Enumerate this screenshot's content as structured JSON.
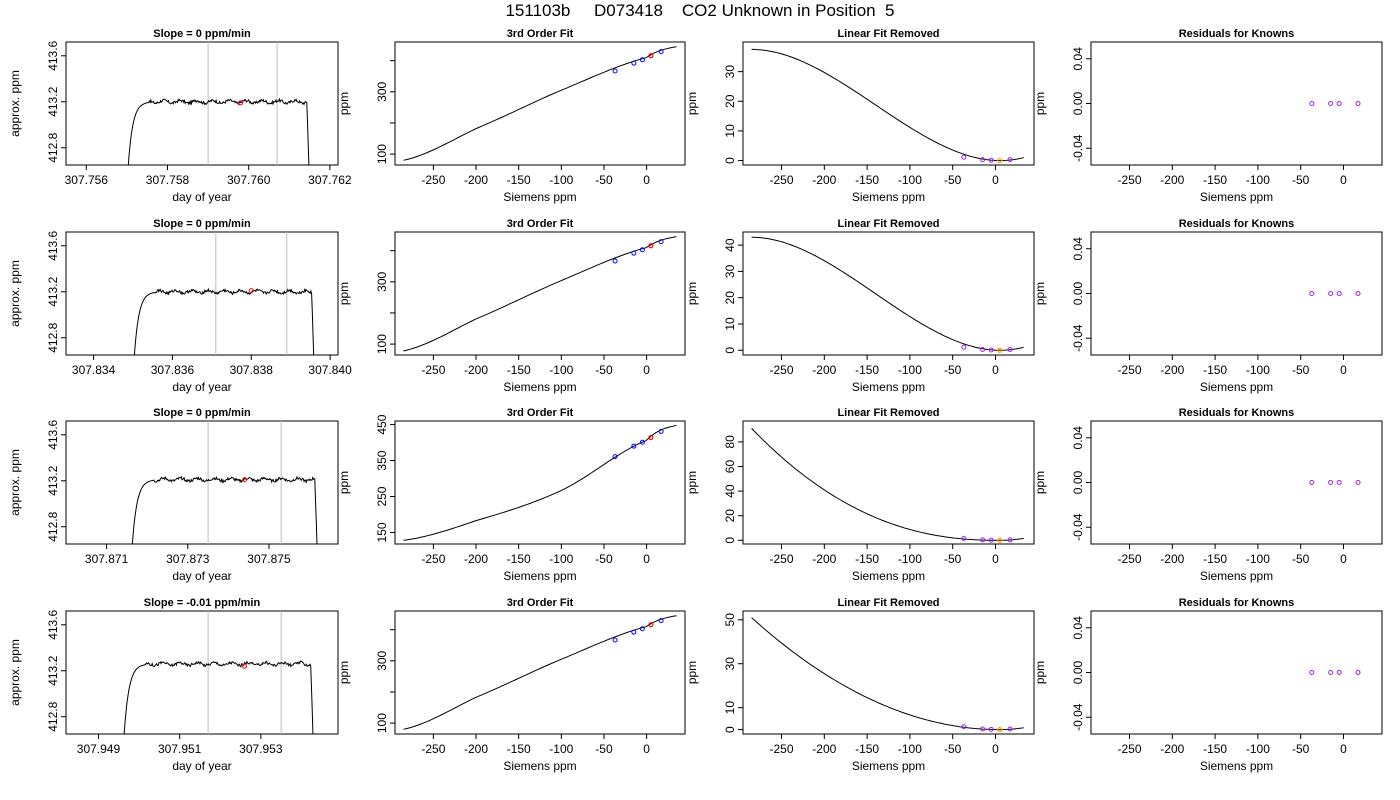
{
  "title": "151103b     D073418    CO2 Unknown in Position  5",
  "colors": {
    "line": "#000000",
    "vline": "#bebebe",
    "red": "#ff0000",
    "blue": "#0000ff",
    "orange": "#ffa500",
    "purple": "#a020f0"
  },
  "chart_data": [
    {
      "type": "line",
      "title": "Slope =  0  ppm/min",
      "xlabel": "day of year",
      "ylabel": "approx. ppm",
      "xlim": [
        307.7555,
        307.7622
      ],
      "ylim": [
        412.65,
        413.72
      ],
      "xticks": [
        307.756,
        307.758,
        307.76,
        307.762
      ],
      "xtick_labels": [
        "307.756",
        "307.758",
        "307.760",
        "307.762"
      ],
      "yticks": [
        412.8,
        413.2,
        413.6
      ],
      "ytick_labels": [
        "412.8",
        "413.2",
        "413.6"
      ],
      "window_lines": [
        307.759,
        307.7607
      ],
      "marker": {
        "x": 307.7598,
        "y": 413.19,
        "color": "red"
      },
      "trace": {
        "x_start": 307.757,
        "x_end": 307.7615,
        "plateau": 413.2
      }
    },
    {
      "type": "line",
      "title": "3rd Order Fit",
      "xlabel": "Siemens ppm",
      "ylabel": "ppm",
      "xlim": [
        -295,
        45
      ],
      "ylim": [
        65,
        460
      ],
      "xticks": [
        -250,
        -200,
        -150,
        -100,
        -50,
        0
      ],
      "xtick_labels": [
        "-250",
        "-200",
        "-150",
        "-100",
        "-50",
        "0"
      ],
      "yticks": [
        100,
        300
      ],
      "ytick_labels": [
        "100",
        "300"
      ],
      "minor_yticks": [
        200,
        400
      ],
      "curve": {
        "x": [
          -285,
          -200,
          -100,
          0,
          35
        ],
        "y": [
          80,
          182,
          305,
          410,
          445
        ]
      },
      "knowns": {
        "x": [
          -37,
          -15,
          -5,
          17
        ],
        "y": [
          367,
          392,
          403,
          429
        ],
        "color": "blue"
      },
      "unknown": {
        "x": 5,
        "y": 416,
        "color": "red"
      }
    },
    {
      "type": "line",
      "title": "Linear Fit Removed",
      "xlabel": "Siemens ppm",
      "ylabel": "ppm",
      "xlim": [
        -295,
        45
      ],
      "ylim": [
        -1.5,
        40
      ],
      "xticks": [
        -250,
        -200,
        -150,
        -100,
        -50,
        0
      ],
      "xtick_labels": [
        "-250",
        "-200",
        "-150",
        "-100",
        "-50",
        "0"
      ],
      "yticks": [
        0,
        10,
        20,
        30
      ],
      "ytick_labels": [
        "0",
        "10",
        "20",
        "30"
      ],
      "curve_cubic": {
        "x_start": -285,
        "x_end": 35,
        "y_start": 37.5,
        "x_min": 5
      },
      "knowns": {
        "x": [
          -37,
          -15,
          -5,
          17
        ],
        "y": [
          1.1,
          0.3,
          0.1,
          0.3
        ],
        "color": "purple"
      },
      "unknown": {
        "x": 5,
        "y": 0,
        "color": "orange"
      }
    },
    {
      "type": "scatter",
      "title": "Residuals for Knowns",
      "xlabel": "Siemens ppm",
      "ylabel": "ppm",
      "xlim": [
        -295,
        45
      ],
      "ylim": [
        -0.055,
        0.055
      ],
      "xticks": [
        -250,
        -200,
        -150,
        -100,
        -50,
        0
      ],
      "xtick_labels": [
        "-250",
        "-200",
        "-150",
        "-100",
        "-50",
        "0"
      ],
      "yticks": [
        -0.04,
        0.0,
        0.04
      ],
      "ytick_labels": [
        "-0.04",
        "0.00",
        "0.04"
      ],
      "points": {
        "x": [
          -37,
          -15,
          -5,
          17
        ],
        "y": [
          0,
          0,
          0,
          0
        ],
        "color": "purple"
      }
    },
    {
      "type": "line",
      "title": "Slope =  0  ppm/min",
      "xlabel": "day of year",
      "ylabel": "approx. ppm",
      "xlim": [
        307.8333,
        307.8402
      ],
      "ylim": [
        412.65,
        413.72
      ],
      "xticks": [
        307.834,
        307.836,
        307.838,
        307.84
      ],
      "xtick_labels": [
        "307.834",
        "307.836",
        "307.838",
        "307.840"
      ],
      "yticks": [
        412.8,
        413.2,
        413.6
      ],
      "ytick_labels": [
        "412.8",
        "413.2",
        "413.6"
      ],
      "window_lines": [
        307.8371,
        307.8389
      ],
      "marker": {
        "x": 307.838,
        "y": 413.21,
        "color": "red"
      },
      "trace": {
        "x_start": 307.835,
        "x_end": 307.8396,
        "plateau": 413.2
      }
    },
    {
      "type": "line",
      "title": "3rd Order Fit",
      "xlabel": "Siemens ppm",
      "ylabel": "ppm",
      "xlim": [
        -295,
        45
      ],
      "ylim": [
        65,
        460
      ],
      "xticks": [
        -250,
        -200,
        -150,
        -100,
        -50,
        0
      ],
      "xtick_labels": [
        "-250",
        "-200",
        "-150",
        "-100",
        "-50",
        "0"
      ],
      "yticks": [
        100,
        300
      ],
      "ytick_labels": [
        "100",
        "300"
      ],
      "minor_yticks": [
        200,
        400
      ],
      "curve": {
        "x": [
          -285,
          -200,
          -100,
          0,
          35
        ],
        "y": [
          78,
          181,
          304,
          410,
          445
        ]
      },
      "knowns": {
        "x": [
          -37,
          -15,
          -5,
          17
        ],
        "y": [
          367,
          392,
          403,
          429
        ],
        "color": "blue"
      },
      "unknown": {
        "x": 5,
        "y": 416,
        "color": "red"
      }
    },
    {
      "type": "line",
      "title": "Linear Fit Removed",
      "xlabel": "Siemens ppm",
      "ylabel": "ppm",
      "xlim": [
        -295,
        45
      ],
      "ylim": [
        -1.8,
        45
      ],
      "xticks": [
        -250,
        -200,
        -150,
        -100,
        -50,
        0
      ],
      "xtick_labels": [
        "-250",
        "-200",
        "-150",
        "-100",
        "-50",
        "0"
      ],
      "yticks": [
        0,
        10,
        20,
        30,
        40
      ],
      "ytick_labels": [
        "0",
        "10",
        "20",
        "30",
        "40"
      ],
      "curve_cubic": {
        "x_start": -285,
        "x_end": 35,
        "y_start": 43,
        "x_min": 5
      },
      "knowns": {
        "x": [
          -37,
          -15,
          -5,
          17
        ],
        "y": [
          1.2,
          0.3,
          0.1,
          0.3
        ],
        "color": "purple"
      },
      "unknown": {
        "x": 5,
        "y": 0,
        "color": "orange"
      }
    },
    {
      "type": "scatter",
      "title": "Residuals for Knowns",
      "xlabel": "Siemens ppm",
      "ylabel": "ppm",
      "xlim": [
        -295,
        45
      ],
      "ylim": [
        -0.055,
        0.055
      ],
      "xticks": [
        -250,
        -200,
        -150,
        -100,
        -50,
        0
      ],
      "xtick_labels": [
        "-250",
        "-200",
        "-150",
        "-100",
        "-50",
        "0"
      ],
      "yticks": [
        -0.04,
        0.0,
        0.04
      ],
      "ytick_labels": [
        "-0.04",
        "0.00",
        "0.04"
      ],
      "points": {
        "x": [
          -37,
          -15,
          -5,
          17
        ],
        "y": [
          0,
          0,
          0,
          0
        ],
        "color": "purple"
      }
    },
    {
      "type": "line",
      "title": "Slope =  0  ppm/min",
      "xlabel": "day of year",
      "ylabel": "approx. ppm",
      "xlim": [
        307.87,
        307.8767
      ],
      "ylim": [
        412.65,
        413.72
      ],
      "xticks": [
        307.871,
        307.873,
        307.875
      ],
      "xtick_labels": [
        "307.871",
        "307.873",
        "307.875"
      ],
      "yticks": [
        412.8,
        413.2,
        413.6
      ],
      "ytick_labels": [
        "412.8",
        "413.2",
        "413.6"
      ],
      "window_lines": [
        307.8735,
        307.8753
      ],
      "marker": {
        "x": 307.8744,
        "y": 413.21,
        "color": "red"
      },
      "trace": {
        "x_start": 307.8716,
        "x_end": 307.8762,
        "plateau": 413.21
      }
    },
    {
      "type": "line",
      "title": "3rd Order Fit",
      "xlabel": "Siemens ppm",
      "ylabel": "ppm",
      "xlim": [
        -295,
        45
      ],
      "ylim": [
        118,
        460
      ],
      "xticks": [
        -250,
        -200,
        -150,
        -100,
        -50,
        0
      ],
      "xtick_labels": [
        "-250",
        "-200",
        "-150",
        "-100",
        "-50",
        "0"
      ],
      "yticks": [
        150,
        250,
        350,
        450
      ],
      "ytick_labels": [
        "150",
        "250",
        "350",
        "450"
      ],
      "curve": {
        "x": [
          -285,
          -200,
          -100,
          0,
          35
        ],
        "y": [
          128,
          183,
          267,
          406,
          448
        ]
      },
      "knowns": {
        "x": [
          -37,
          -15,
          -5,
          17
        ],
        "y": [
          361,
          390,
          401,
          431
        ],
        "color": "blue"
      },
      "unknown": {
        "x": 5,
        "y": 414,
        "color": "red"
      }
    },
    {
      "type": "line",
      "title": "Linear Fit Removed",
      "xlabel": "Siemens ppm",
      "ylabel": "ppm",
      "xlim": [
        -295,
        45
      ],
      "ylim": [
        -3,
        97
      ],
      "xticks": [
        -250,
        -200,
        -150,
        -100,
        -50,
        0
      ],
      "xtick_labels": [
        "-250",
        "-200",
        "-150",
        "-100",
        "-50",
        "0"
      ],
      "yticks": [
        0,
        20,
        40,
        60,
        80
      ],
      "ytick_labels": [
        "0",
        "20",
        "40",
        "60",
        "80"
      ],
      "curve_power": {
        "x_start": -285,
        "x_end": 35,
        "y_start": 91,
        "x_min": 5,
        "power": 2.3
      },
      "knowns": {
        "x": [
          -37,
          -15,
          -5,
          17
        ],
        "y": [
          1.5,
          0.4,
          0.1,
          0.4
        ],
        "color": "purple"
      },
      "unknown": {
        "x": 5,
        "y": 0,
        "color": "orange"
      }
    },
    {
      "type": "scatter",
      "title": "Residuals for Knowns",
      "xlabel": "Siemens ppm",
      "ylabel": "ppm",
      "xlim": [
        -295,
        45
      ],
      "ylim": [
        -0.055,
        0.055
      ],
      "xticks": [
        -250,
        -200,
        -150,
        -100,
        -50,
        0
      ],
      "xtick_labels": [
        "-250",
        "-200",
        "-150",
        "-100",
        "-50",
        "0"
      ],
      "yticks": [
        -0.04,
        0.0,
        0.04
      ],
      "ytick_labels": [
        "-0.04",
        "0.00",
        "0.04"
      ],
      "points": {
        "x": [
          -37,
          -15,
          -5,
          17
        ],
        "y": [
          0,
          0,
          0,
          0
        ],
        "color": "purple"
      }
    },
    {
      "type": "line",
      "title": "Slope =  -0.01  ppm/min",
      "xlabel": "day of year",
      "ylabel": "approx. ppm",
      "xlim": [
        307.9482,
        307.9549
      ],
      "ylim": [
        412.65,
        413.72
      ],
      "xticks": [
        307.949,
        307.951,
        307.953
      ],
      "xtick_labels": [
        "307.949",
        "307.951",
        "307.953"
      ],
      "yticks": [
        412.8,
        413.2,
        413.6
      ],
      "ytick_labels": [
        "412.8",
        "413.2",
        "413.6"
      ],
      "window_lines": [
        307.9517,
        307.9535
      ],
      "marker": {
        "x": 307.9526,
        "y": 413.24,
        "color": "red"
      },
      "trace": {
        "x_start": 307.9496,
        "x_end": 307.9543,
        "plateau": 413.26
      }
    },
    {
      "type": "line",
      "title": "3rd Order Fit",
      "xlabel": "Siemens ppm",
      "ylabel": "ppm",
      "xlim": [
        -295,
        45
      ],
      "ylim": [
        65,
        460
      ],
      "xticks": [
        -250,
        -200,
        -150,
        -100,
        -50,
        0
      ],
      "xtick_labels": [
        "-250",
        "-200",
        "-150",
        "-100",
        "-50",
        "0"
      ],
      "yticks": [
        100,
        300
      ],
      "ytick_labels": [
        "100",
        "300"
      ],
      "minor_yticks": [
        200,
        400
      ],
      "curve": {
        "x": [
          -285,
          -200,
          -100,
          0,
          35
        ],
        "y": [
          80,
          183,
          305,
          410,
          445
        ]
      },
      "knowns": {
        "x": [
          -37,
          -15,
          -5,
          17
        ],
        "y": [
          367,
          392,
          403,
          429
        ],
        "color": "blue"
      },
      "unknown": {
        "x": 5,
        "y": 416,
        "color": "red"
      }
    },
    {
      "type": "line",
      "title": "Linear Fit Removed",
      "xlabel": "Siemens ppm",
      "ylabel": "ppm",
      "xlim": [
        -295,
        45
      ],
      "ylim": [
        -2,
        54
      ],
      "xticks": [
        -250,
        -200,
        -150,
        -100,
        -50,
        0
      ],
      "xtick_labels": [
        "-250",
        "-200",
        "-150",
        "-100",
        "-50",
        "0"
      ],
      "yticks": [
        0,
        10,
        30,
        50
      ],
      "ytick_labels": [
        "0",
        "10",
        "30",
        "50"
      ],
      "curve_power": {
        "x_start": -285,
        "x_end": 35,
        "y_start": 51,
        "x_min": 5,
        "power": 2.0
      },
      "knowns": {
        "x": [
          -37,
          -15,
          -5,
          17
        ],
        "y": [
          1.3,
          0.3,
          0.1,
          0.3
        ],
        "color": "purple"
      },
      "unknown": {
        "x": 5,
        "y": 0,
        "color": "orange"
      }
    },
    {
      "type": "scatter",
      "title": "Residuals for Knowns",
      "xlabel": "Siemens ppm",
      "ylabel": "ppm",
      "xlim": [
        -295,
        45
      ],
      "ylim": [
        -0.055,
        0.055
      ],
      "xticks": [
        -250,
        -200,
        -150,
        -100,
        -50,
        0
      ],
      "xtick_labels": [
        "-250",
        "-200",
        "-150",
        "-100",
        "-50",
        "0"
      ],
      "yticks": [
        -0.04,
        0.0,
        0.04
      ],
      "ytick_labels": [
        "-0.04",
        "0.00",
        "0.04"
      ],
      "points": {
        "x": [
          -37,
          -15,
          -5,
          17
        ],
        "y": [
          0,
          0,
          0,
          0
        ],
        "color": "purple"
      }
    }
  ]
}
